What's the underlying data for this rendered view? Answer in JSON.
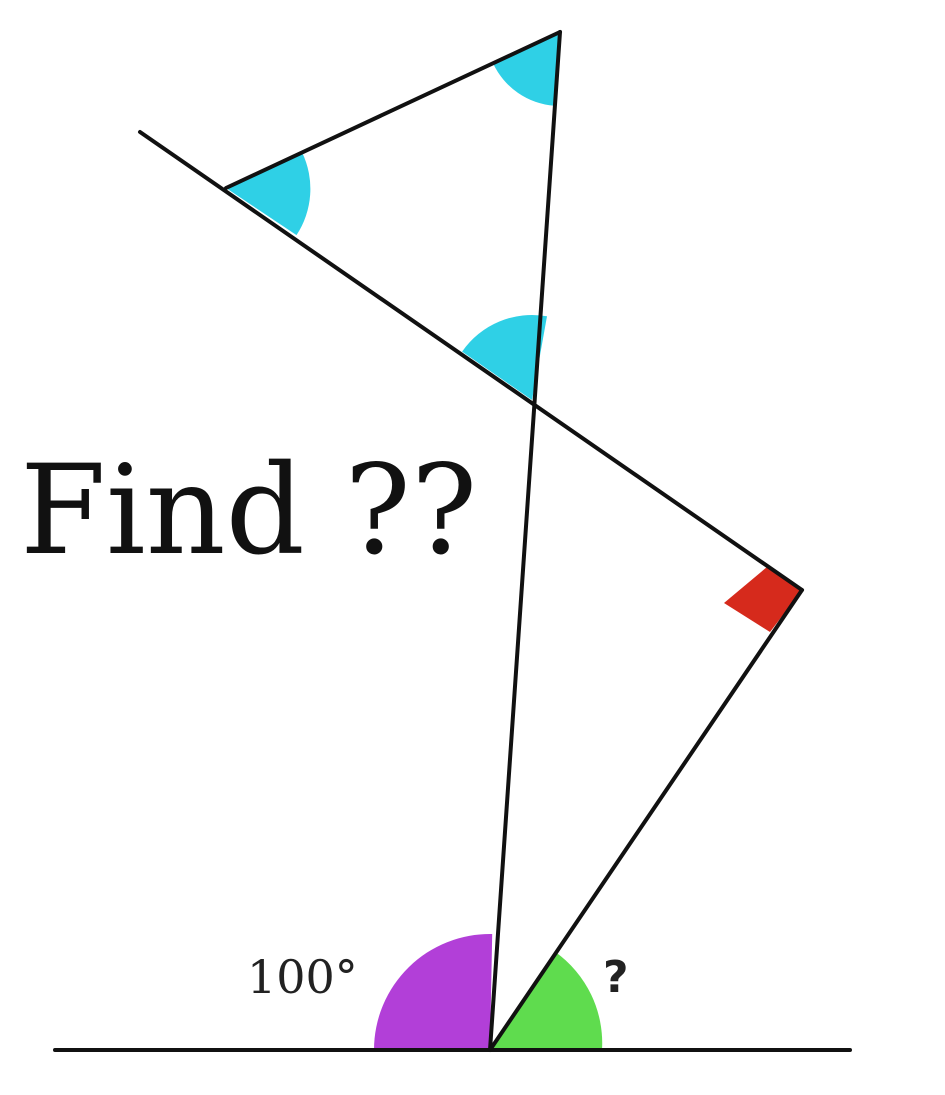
{
  "title": "Find ??",
  "labels": {
    "given_angle": "100°",
    "unknown_angle": "?"
  },
  "colors": {
    "triangle_angle_marks": "#2fd0e6",
    "given_angle_mark": "#b23fd8",
    "unknown_angle_mark": "#5fdc4e",
    "right_angle_mark": "#d62a1c",
    "lines": "#111111",
    "background": "#ffffff"
  },
  "diagram": {
    "marked_angles": {
      "given_angle_degrees": 100,
      "right_angle": true,
      "triangle_equal_angles": 3
    }
  }
}
